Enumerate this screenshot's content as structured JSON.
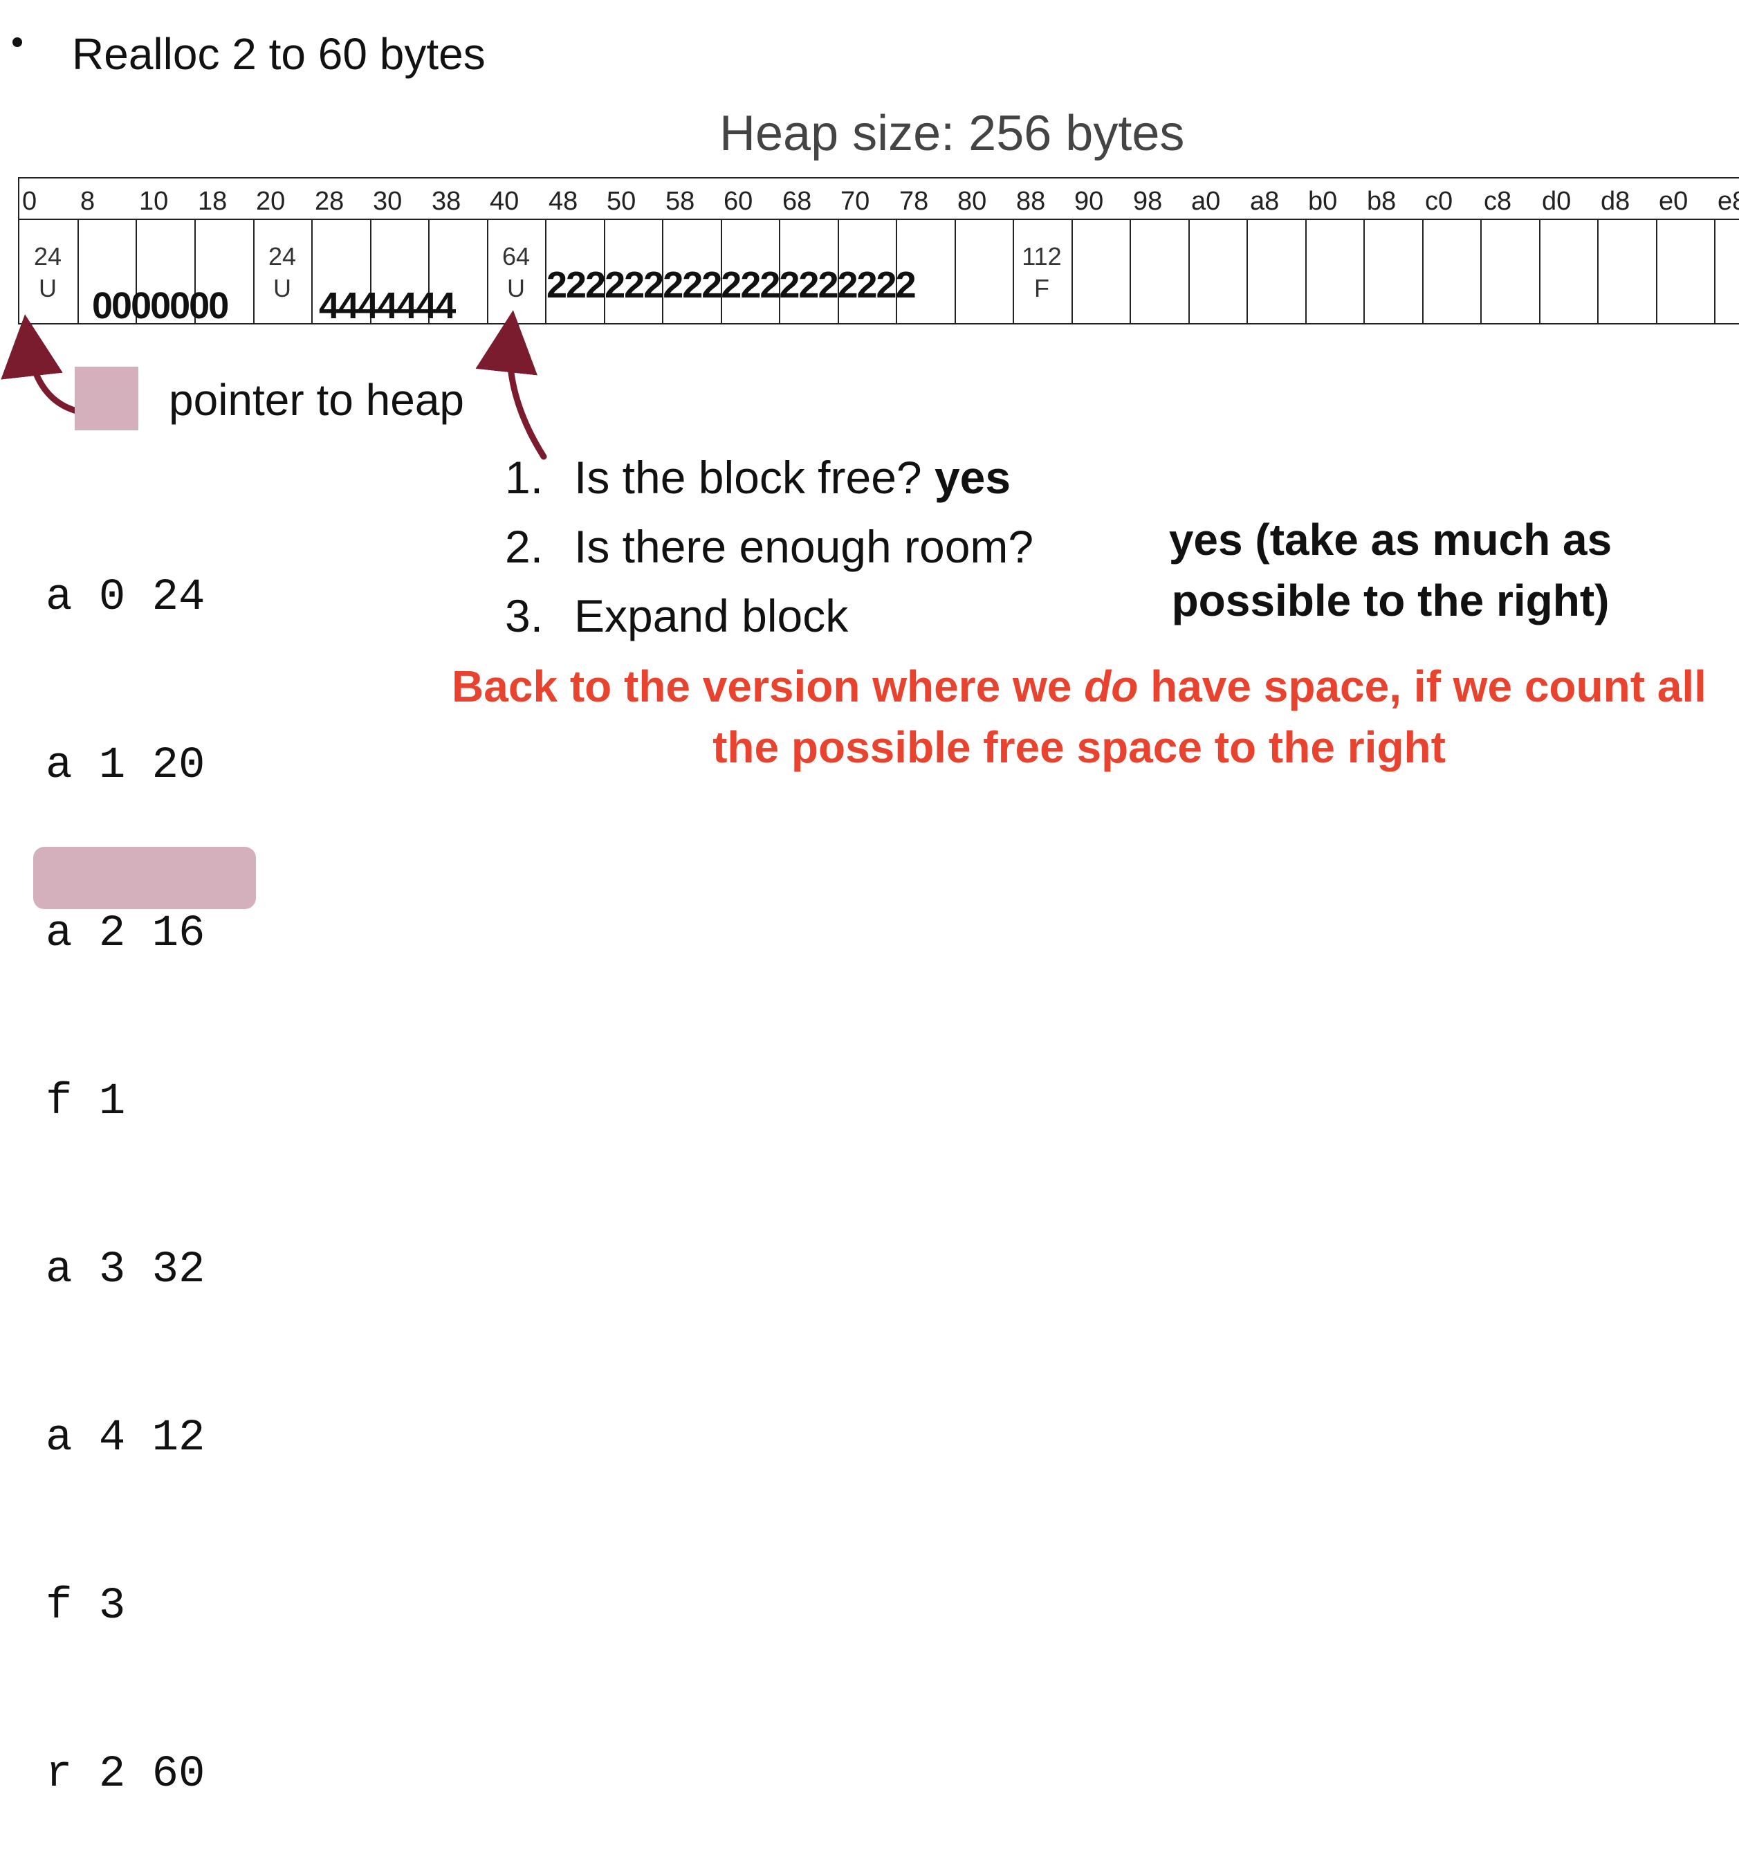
{
  "slide": {
    "bullet": "Realloc 2 to 60 bytes",
    "heap_title": "Heap size: 256 bytes"
  },
  "heap": {
    "addresses": [
      "0",
      "8",
      "10",
      "18",
      "20",
      "28",
      "30",
      "38",
      "40",
      "48",
      "50",
      "58",
      "60",
      "68",
      "70",
      "78",
      "80",
      "88",
      "90",
      "98",
      "a0",
      "a8",
      "b0",
      "b8",
      "c0",
      "c8",
      "d0",
      "d8",
      "e0",
      "e8"
    ],
    "headers": [
      {
        "size": "24",
        "status": "U"
      },
      {
        "size": "24",
        "status": "U"
      },
      {
        "size": "64",
        "status": "U"
      },
      {
        "size": "112",
        "status": "F"
      }
    ],
    "payloads": [
      "0000000",
      "4444444",
      "2222222222222222222"
    ]
  },
  "pointer_label": "pointer to heap",
  "commands": [
    "a 0 24",
    "a 1 20",
    "a 2 16",
    "f 1",
    "a 3 32",
    "a 4 12",
    "f 3",
    "r 2 60"
  ],
  "steps": [
    {
      "num": "1.",
      "text": "Is the block free? ",
      "answer": "yes"
    },
    {
      "num": "2.",
      "text": "Is there enough room?"
    },
    {
      "num": "3.",
      "text": "Expand block"
    }
  ],
  "yes_note": "yes (take as much as possible to the right)",
  "red_note": {
    "before": "Back to the version where we ",
    "emphasis": "do",
    "after": " have space, if we count all the possible free space to the right"
  },
  "colors": {
    "arrow": "#7a1c2e",
    "highlight": "#d4b0bd",
    "red_text": "#e8432f"
  }
}
